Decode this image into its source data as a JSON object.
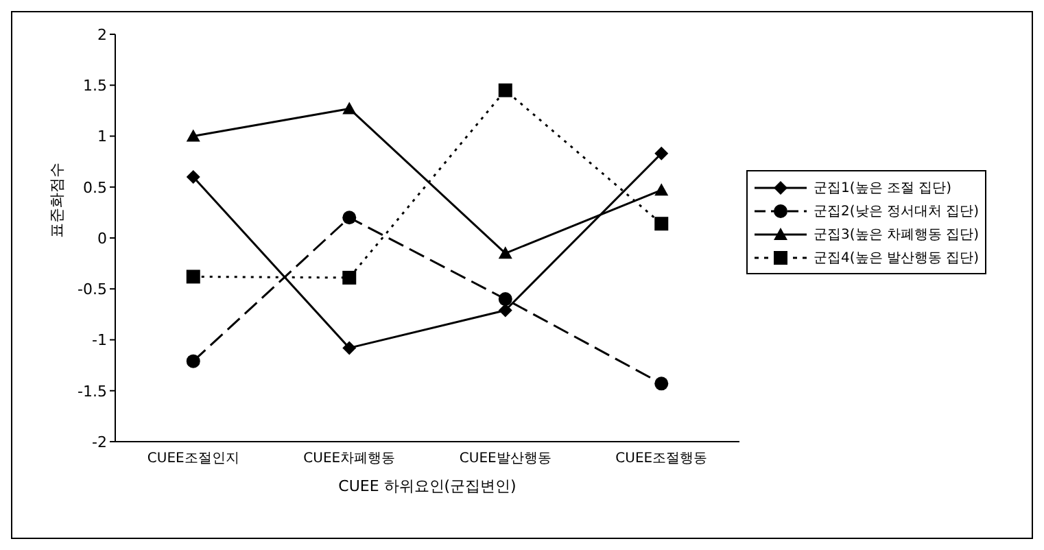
{
  "chart_data": {
    "type": "line",
    "ylabel": "표준화점수",
    "xlabel": "CUEE 하위요인(군집변인)",
    "categories": [
      "CUEE조절인지",
      "CUEE차폐행동",
      "CUEE발산행동",
      "CUEE조절행동"
    ],
    "ylim": [
      -2,
      2
    ],
    "yticks": [
      -2,
      -1.5,
      -1,
      -0.5,
      0,
      0.5,
      1,
      1.5,
      2
    ],
    "grid": false,
    "legend": "right",
    "series": [
      {
        "name": "군집1(높은 조절 집단)",
        "color": "#000000",
        "marker": "diamond",
        "line_style": "solid",
        "values": [
          0.6,
          -1.08,
          -0.71,
          0.83
        ]
      },
      {
        "name": "군집2(낮은 정서대처 집단)",
        "color": "#000000",
        "marker": "circle",
        "line_style": "dashed",
        "values": [
          -1.21,
          0.2,
          -0.6,
          -1.43
        ]
      },
      {
        "name": "군집3(높은 차폐행동 집단)",
        "color": "#000000",
        "marker": "triangle",
        "line_style": "solid",
        "values": [
          1.0,
          1.27,
          -0.15,
          0.47
        ]
      },
      {
        "name": "군집4(높은 발산행동 집단)",
        "color": "#000000",
        "marker": "square",
        "line_style": "dotted",
        "values": [
          -0.38,
          -0.39,
          1.45,
          0.14
        ]
      }
    ]
  }
}
